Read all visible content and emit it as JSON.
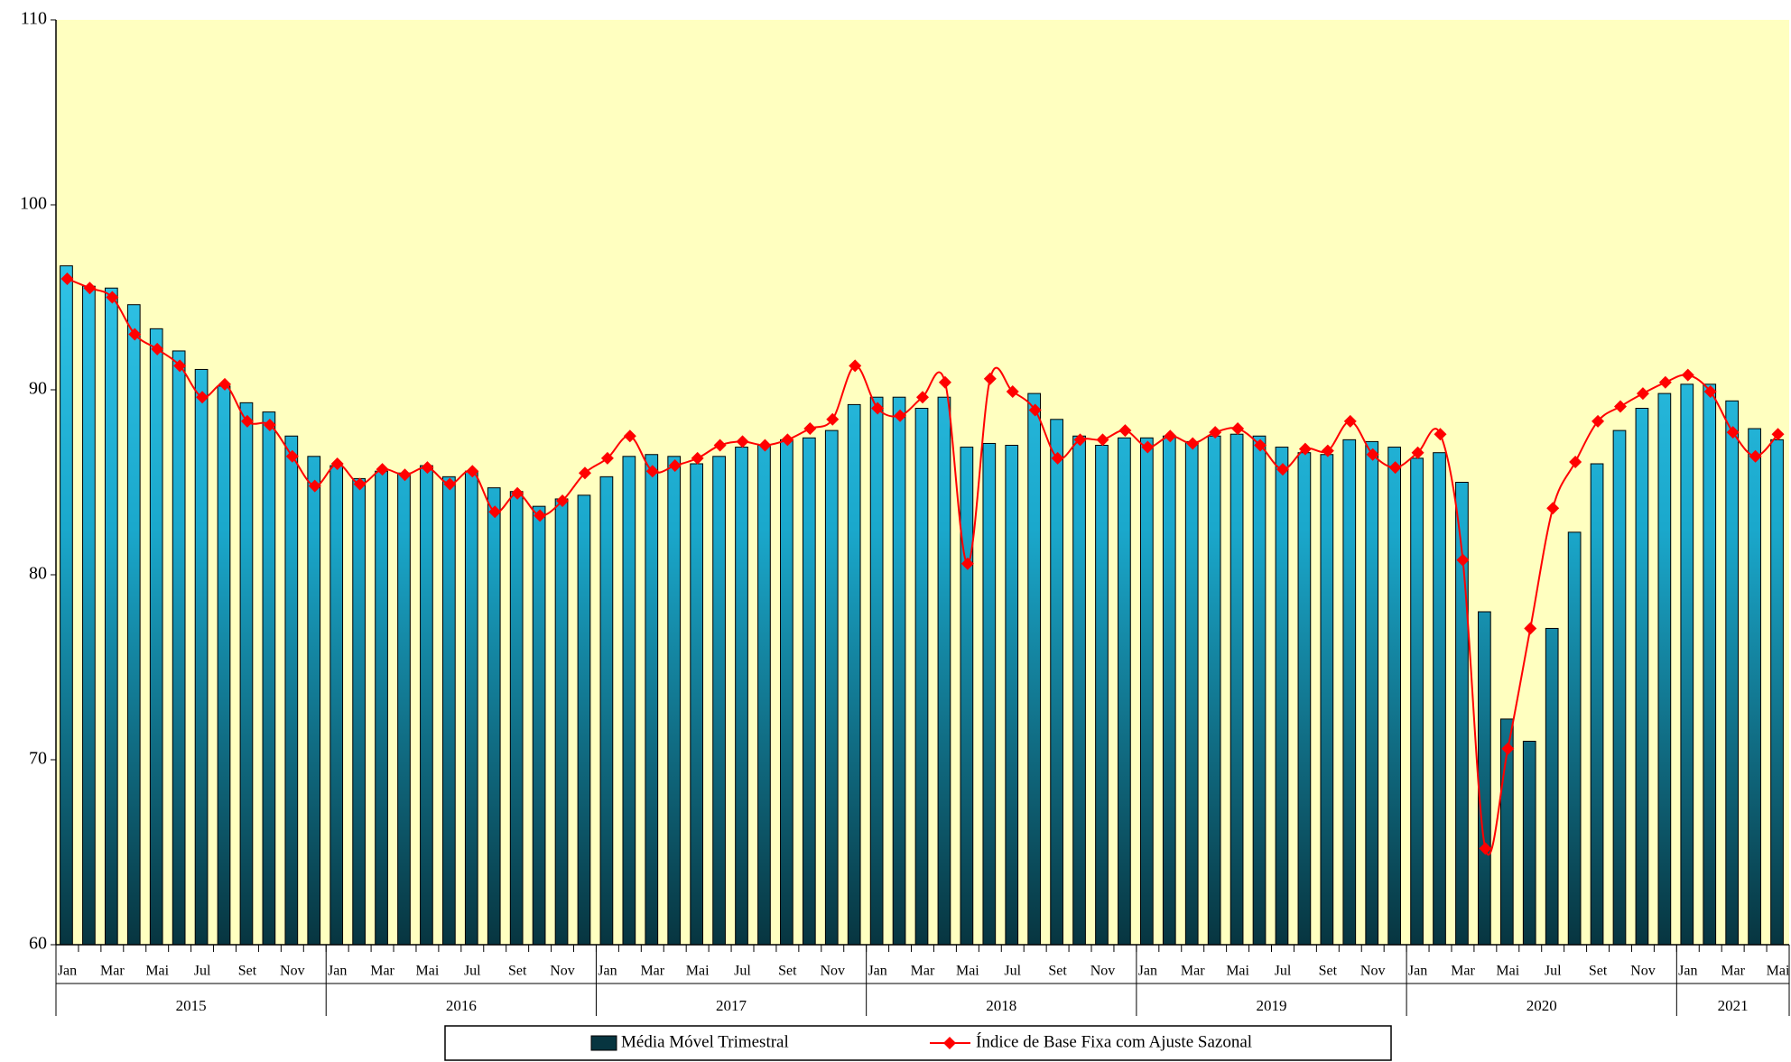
{
  "chart_data": {
    "type": "bar-line",
    "categories": [
      "Jan",
      null,
      "Mar",
      null,
      "Mai",
      null,
      "Jul",
      null,
      "Set",
      null,
      "Nov",
      null,
      "Jan",
      null,
      "Mar",
      null,
      "Mai",
      null,
      "Jul",
      null,
      "Set",
      null,
      "Nov",
      null,
      "Jan",
      null,
      "Mar",
      null,
      "Mai",
      null,
      "Jul",
      null,
      "Set",
      null,
      "Nov",
      null,
      "Jan",
      null,
      "Mar",
      null,
      "Mai",
      null,
      "Jul",
      null,
      "Set",
      null,
      "Nov",
      null,
      "Jan",
      null,
      "Mar",
      null,
      "Mai",
      null,
      "Jul",
      null,
      "Set",
      null,
      "Nov",
      null,
      "Jan",
      null,
      "Mar",
      null,
      "Mai",
      null,
      "Jul",
      null,
      "Set",
      null,
      "Nov",
      null,
      "Jan",
      null,
      "Mar",
      null,
      "Mai"
    ],
    "years": [
      "2015",
      "2016",
      "2017",
      "2018",
      "2019",
      "2020",
      "2021"
    ],
    "series": [
      {
        "name": "Média Móvel Trimestral",
        "kind": "bar",
        "color": "#33ccee",
        "values": [
          96.7,
          95.6,
          95.5,
          94.6,
          93.3,
          92.1,
          91.1,
          90.2,
          89.3,
          88.8,
          87.5,
          86.4,
          85.9,
          85.2,
          85.6,
          85.5,
          85.9,
          85.3,
          85.6,
          84.7,
          84.5,
          83.7,
          84.1,
          84.3,
          85.3,
          86.4,
          86.5,
          86.4,
          86.0,
          86.4,
          86.9,
          87.0,
          87.3,
          87.4,
          87.8,
          89.2,
          89.6,
          89.6,
          89.0,
          89.6,
          86.9,
          87.1,
          87.0,
          89.8,
          88.4,
          87.5,
          87.0,
          87.4,
          87.4,
          87.5,
          87.2,
          87.5,
          87.6,
          87.5,
          86.9,
          86.6,
          86.5,
          87.3,
          87.2,
          86.9,
          86.3,
          86.6,
          85.0,
          78.0,
          72.2,
          71.0,
          77.1,
          82.3,
          86.0,
          87.8,
          89.0,
          89.8,
          90.3,
          90.3,
          89.4,
          87.9,
          87.3
        ]
      },
      {
        "name": "Índice de Base Fixa com Ajuste Sazonal",
        "kind": "line",
        "color": "#ff0000",
        "values": [
          96.0,
          95.5,
          95.0,
          93.0,
          92.2,
          91.3,
          89.6,
          90.3,
          88.3,
          88.1,
          86.4,
          84.8,
          86.0,
          84.9,
          85.7,
          85.4,
          85.8,
          84.9,
          85.6,
          83.4,
          84.4,
          83.2,
          84.0,
          85.5,
          86.3,
          87.5,
          85.6,
          85.9,
          86.3,
          87.0,
          87.2,
          87.0,
          87.3,
          87.9,
          88.4,
          91.3,
          89.0,
          88.6,
          89.6,
          90.4,
          80.6,
          90.6,
          89.9,
          88.9,
          86.3,
          87.3,
          87.3,
          87.8,
          86.9,
          87.5,
          87.1,
          87.7,
          87.9,
          87.0,
          85.7,
          86.8,
          86.7,
          88.3,
          86.5,
          85.8,
          86.6,
          87.6,
          80.8,
          65.2,
          70.6,
          77.1,
          83.6,
          86.1,
          88.3,
          89.1,
          89.8,
          90.4,
          90.8,
          89.9,
          87.7,
          86.4,
          87.6
        ]
      }
    ],
    "ylim": [
      60,
      110
    ],
    "yticks": [
      60,
      70,
      80,
      90,
      100,
      110
    ],
    "background": "#ffffc0",
    "legend": "bottom"
  }
}
